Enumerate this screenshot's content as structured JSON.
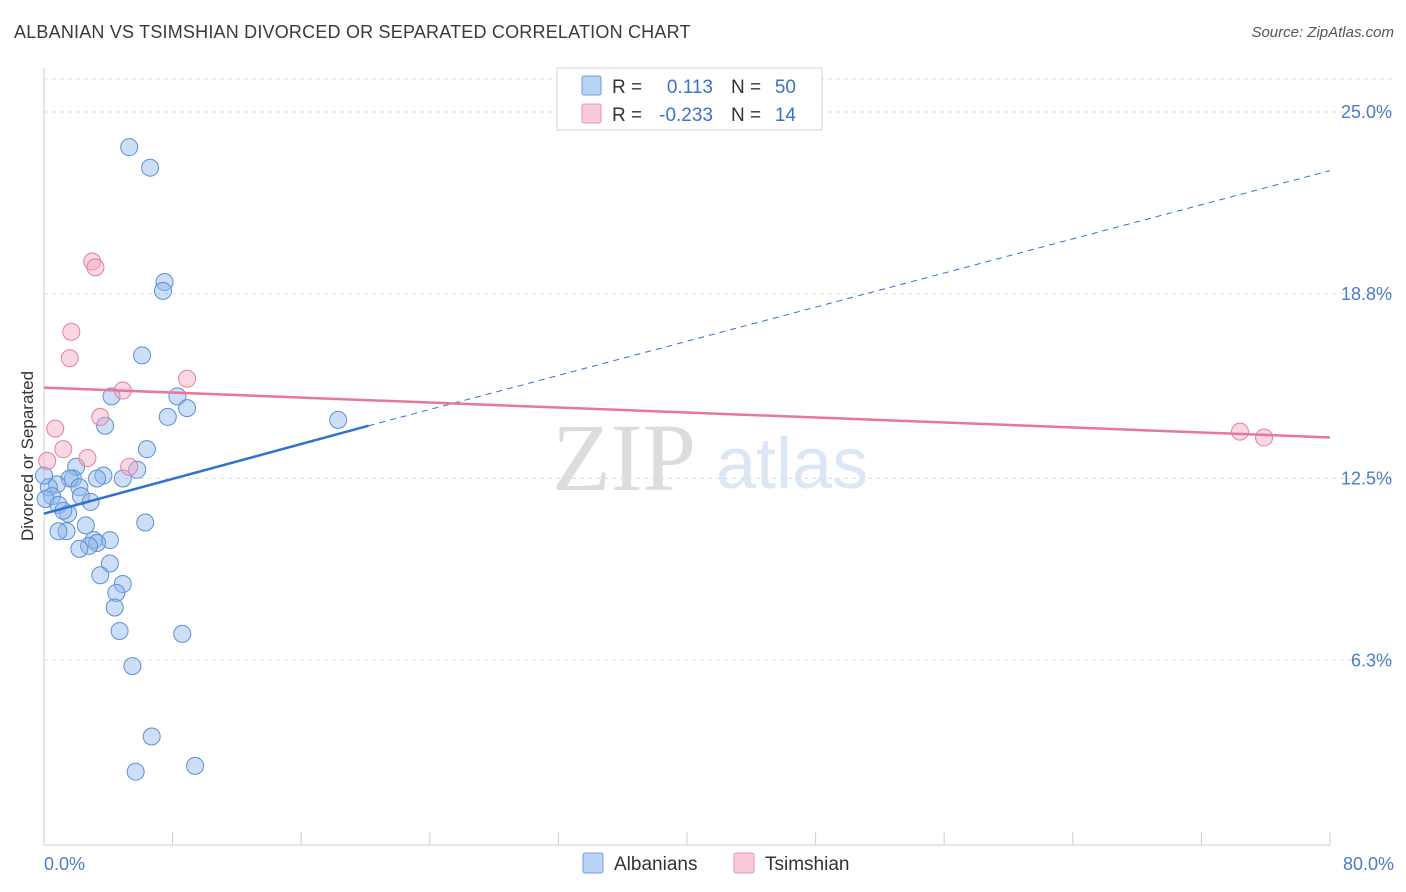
{
  "header": {
    "title": "ALBANIAN VS TSIMSHIAN DIVORCED OR SEPARATED CORRELATION CHART",
    "source": "Source: ZipAtlas.com"
  },
  "watermark": {
    "zip": "ZIP",
    "atlas": "atlas"
  },
  "legend_top": {
    "rows": [
      {
        "r_label": "R =",
        "r_value": "0.113",
        "n_label": "N =",
        "n_value": "50",
        "color": "#8fb8ec"
      },
      {
        "r_label": "R =",
        "r_value": "-0.233",
        "n_label": "N =",
        "n_value": "14",
        "color": "#f4a9c1"
      }
    ]
  },
  "legend_bottom": {
    "items": [
      {
        "label": "Albanians",
        "color": "#8fb8ec"
      },
      {
        "label": "Tsimshian",
        "color": "#f4a9c1"
      }
    ]
  },
  "chart_data": {
    "type": "scatter",
    "title": "ALBANIAN VS TSIMSHIAN DIVORCED OR SEPARATED CORRELATION CHART",
    "xlabel": "",
    "ylabel": "Divorced or Separated",
    "xlim": [
      0,
      80
    ],
    "ylim": [
      0,
      26.5
    ],
    "x_tick_labels": {
      "min": "0.0%",
      "max": "80.0%"
    },
    "y_ticks": [
      {
        "value": 6.3,
        "label": "6.3%"
      },
      {
        "value": 12.5,
        "label": "12.5%"
      },
      {
        "value": 18.8,
        "label": "18.8%"
      },
      {
        "value": 25.0,
        "label": "25.0%"
      }
    ],
    "series": [
      {
        "name": "Albanians",
        "color": "#8fb8ec",
        "stroke": "#5b8fd6",
        "points": [
          [
            5.3,
            23.8
          ],
          [
            6.6,
            23.1
          ],
          [
            7.5,
            19.2
          ],
          [
            7.4,
            18.9
          ],
          [
            6.1,
            16.7
          ],
          [
            4.2,
            15.3
          ],
          [
            8.3,
            15.3
          ],
          [
            8.9,
            14.9
          ],
          [
            7.7,
            14.6
          ],
          [
            3.8,
            14.3
          ],
          [
            18.3,
            14.5
          ],
          [
            6.4,
            13.5
          ],
          [
            2.0,
            12.9
          ],
          [
            5.8,
            12.8
          ],
          [
            3.7,
            12.6
          ],
          [
            3.3,
            12.5
          ],
          [
            1.8,
            12.5
          ],
          [
            1.6,
            12.5
          ],
          [
            0.8,
            12.3
          ],
          [
            4.9,
            12.5
          ],
          [
            2.2,
            12.2
          ],
          [
            0.3,
            12.2
          ],
          [
            0.5,
            11.9
          ],
          [
            2.3,
            11.9
          ],
          [
            2.9,
            11.7
          ],
          [
            0.1,
            11.8
          ],
          [
            0.9,
            11.6
          ],
          [
            1.5,
            11.3
          ],
          [
            6.3,
            11.0
          ],
          [
            2.6,
            10.9
          ],
          [
            1.4,
            10.7
          ],
          [
            0.9,
            10.7
          ],
          [
            3.1,
            10.4
          ],
          [
            4.1,
            10.4
          ],
          [
            3.3,
            10.3
          ],
          [
            2.8,
            10.2
          ],
          [
            2.2,
            10.1
          ],
          [
            4.1,
            9.6
          ],
          [
            3.5,
            9.2
          ],
          [
            4.9,
            8.9
          ],
          [
            4.5,
            8.6
          ],
          [
            4.4,
            8.1
          ],
          [
            8.6,
            7.2
          ],
          [
            4.7,
            7.3
          ],
          [
            5.5,
            6.1
          ],
          [
            6.7,
            3.7
          ],
          [
            9.4,
            2.7
          ],
          [
            5.7,
            2.5
          ],
          [
            0.0,
            12.6
          ],
          [
            1.2,
            11.4
          ]
        ]
      },
      {
        "name": "Tsimshian",
        "color": "#f4a9c1",
        "stroke": "#e57ea0",
        "points": [
          [
            3.0,
            19.9
          ],
          [
            3.2,
            19.7
          ],
          [
            1.7,
            17.5
          ],
          [
            1.6,
            16.6
          ],
          [
            8.9,
            15.9
          ],
          [
            4.9,
            15.5
          ],
          [
            3.5,
            14.6
          ],
          [
            0.7,
            14.2
          ],
          [
            1.2,
            13.5
          ],
          [
            2.7,
            13.2
          ],
          [
            0.2,
            13.1
          ],
          [
            5.3,
            12.9
          ],
          [
            74.4,
            14.1
          ],
          [
            75.9,
            13.9
          ]
        ]
      }
    ],
    "trendlines": [
      {
        "series": "Albanians",
        "x0": 0,
        "y0": 11.3,
        "x1": 20.2,
        "y1": 14.3,
        "x_dash_end": 80,
        "y_dash_end": 23.0,
        "color": "#2f72d0"
      },
      {
        "series": "Tsimshian",
        "x0": 0,
        "y0": 15.6,
        "x1": 80,
        "y1": 13.9,
        "color": "#e8779c"
      }
    ]
  }
}
